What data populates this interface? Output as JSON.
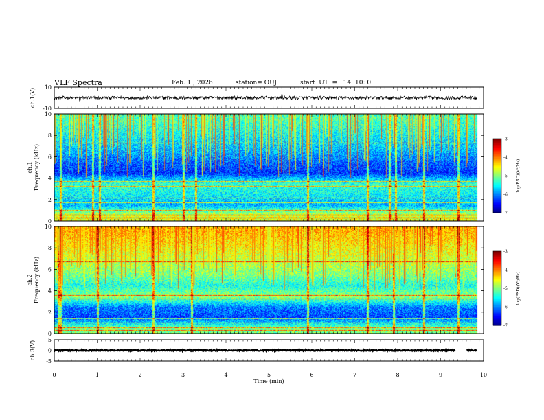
{
  "header": {
    "title": "VLF Spectra",
    "date": "Feb. 1 , 2026",
    "station": "station= OUJ",
    "start": "start  UT  =   14: 10: 0"
  },
  "colors": {
    "background": "#ffffff",
    "axis": "#000000",
    "trace": "#000000",
    "spectrogram_low": "#00008f",
    "spectrogram_mid": "#00ff80",
    "spectrogram_high": "#ff0000"
  },
  "chart_data": [
    {
      "type": "line",
      "name": "ch1-waveform",
      "ylabel": "ch.1(V)",
      "ylim": [
        -10,
        10
      ],
      "yticks": [
        10,
        -10
      ],
      "x_unit": "min",
      "xlim": [
        0,
        10
      ],
      "baseline": 0,
      "noise_amplitude": 1.5,
      "spikes": [
        {
          "x": 0.6,
          "y": -3
        },
        {
          "x": 5.3,
          "y": 3
        },
        {
          "x": 6.6,
          "y": -2
        }
      ]
    },
    {
      "type": "heatmap",
      "name": "ch1-spectrogram",
      "ylabel": "ch.1\nFrequency  (kHz)",
      "ylim": [
        0,
        10
      ],
      "yticks": [
        0,
        2,
        4,
        6,
        8,
        10
      ],
      "xlim": [
        0,
        10
      ],
      "data_end_min": 9.85,
      "colorbar": {
        "label": "log(PSD)(V²/Hz)",
        "range": [
          -7,
          -3
        ],
        "ticks": [
          -3,
          -4,
          -5,
          -6,
          -7
        ]
      },
      "background_log_psd": [
        {
          "freq_khz": 0.5,
          "value": -4.6
        },
        {
          "freq_khz": 1.5,
          "value": -5.8
        },
        {
          "freq_khz": 2.5,
          "value": -5.5
        },
        {
          "freq_khz": 3.5,
          "value": -5.3
        },
        {
          "freq_khz": 4.5,
          "value": -6.3
        },
        {
          "freq_khz": 5.5,
          "value": -6.1
        },
        {
          "freq_khz": 6.5,
          "value": -5.8
        },
        {
          "freq_khz": 7.5,
          "value": -5.6
        },
        {
          "freq_khz": 8.5,
          "value": -5.4
        },
        {
          "freq_khz": 9.5,
          "value": -5.2
        }
      ],
      "narrowband_lines_khz": [
        0.3,
        0.6,
        1.0,
        1.7,
        2.2,
        3.3,
        3.7,
        7.3
      ],
      "impulsive_bursts_min": [
        0.15,
        0.9,
        1.05,
        2.3,
        3.0,
        3.3,
        5.9,
        7.3,
        7.8,
        7.95,
        8.6,
        9.4
      ]
    },
    {
      "type": "heatmap",
      "name": "ch2-spectrogram",
      "ylabel": "ch.2\nFrequency  (kHz)",
      "ylim": [
        0,
        10
      ],
      "yticks": [
        0,
        2,
        4,
        6,
        8,
        10
      ],
      "xlim": [
        0,
        10
      ],
      "data_end_min": 9.85,
      "colorbar": {
        "label": "log(PSD)(V²/Hz)",
        "range": [
          -7,
          -3
        ],
        "ticks": [
          -3,
          -4,
          -5,
          -6,
          -7
        ]
      },
      "background_log_psd": [
        {
          "freq_khz": 0.5,
          "value": -5.0
        },
        {
          "freq_khz": 1.5,
          "value": -6.2
        },
        {
          "freq_khz": 2.5,
          "value": -6.0
        },
        {
          "freq_khz": 3.5,
          "value": -4.9
        },
        {
          "freq_khz": 4.5,
          "value": -5.4
        },
        {
          "freq_khz": 5.5,
          "value": -5.0
        },
        {
          "freq_khz": 6.5,
          "value": -4.8
        },
        {
          "freq_khz": 7.5,
          "value": -4.6
        },
        {
          "freq_khz": 8.5,
          "value": -4.4
        },
        {
          "freq_khz": 9.5,
          "value": -4.2
        }
      ],
      "narrowband_lines_khz": [
        0.3,
        0.6,
        1.0,
        1.4,
        3.3,
        3.6,
        6.7
      ],
      "impulsive_bursts_min": [
        0.1,
        0.15,
        1.0,
        2.3,
        3.2,
        5.9,
        7.3,
        7.9,
        8.6,
        9.4
      ]
    },
    {
      "type": "line",
      "name": "ch3-waveform",
      "ylabel": "ch.3(V)",
      "ylim": [
        -5,
        5
      ],
      "yticks": [
        5,
        0,
        -5
      ],
      "x_unit": "min",
      "xlim": [
        0,
        10
      ],
      "baseline": 0,
      "noise_amplitude": 0.3,
      "gap_min": [
        9.35,
        9.6
      ]
    }
  ],
  "xaxis": {
    "label": "Time  (min)",
    "ticks": [
      0,
      1,
      2,
      3,
      4,
      5,
      6,
      7,
      8,
      9,
      10
    ]
  }
}
